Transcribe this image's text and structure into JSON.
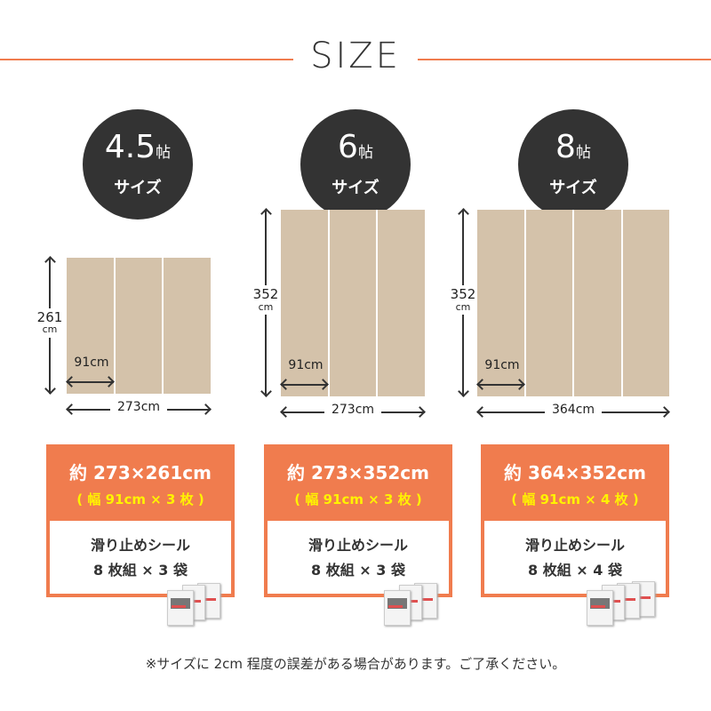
{
  "header": {
    "title": "SIZE"
  },
  "accent_color": "#F07C4E",
  "mat_color": "#D4C2AA",
  "sizes": [
    {
      "jo": "4.5",
      "jo_unit": "帖",
      "jo_label": "サイズ",
      "height_value": "261",
      "height_unit": "cm",
      "width_label": "273cm",
      "strip_label": "91cm",
      "strips": 3,
      "main": "約 273×261cm",
      "paren": "( 幅 91cm × 3 枚 )",
      "seal_line1": "滑り止めシール",
      "seal_line2": "8 枚組 × 3 袋",
      "bags": 3
    },
    {
      "jo": "6",
      "jo_unit": "帖",
      "jo_label": "サイズ",
      "height_value": "352",
      "height_unit": "cm",
      "width_label": "273cm",
      "strip_label": "91cm",
      "strips": 3,
      "main": "約 273×352cm",
      "paren": "( 幅 91cm × 3 枚 )",
      "seal_line1": "滑り止めシール",
      "seal_line2": "8 枚組 × 3 袋",
      "bags": 3
    },
    {
      "jo": "8",
      "jo_unit": "帖",
      "jo_label": "サイズ",
      "height_value": "352",
      "height_unit": "cm",
      "width_label": "364cm",
      "strip_label": "91cm",
      "strips": 4,
      "main": "約 364×352cm",
      "paren": "( 幅 91cm × 4 枚 )",
      "seal_line1": "滑り止めシール",
      "seal_line2": "8 枚組 × 4 袋",
      "bags": 4
    }
  ],
  "footer": {
    "note": "※サイズに 2cm 程度の誤差がある場合があります。ご了承ください。"
  }
}
